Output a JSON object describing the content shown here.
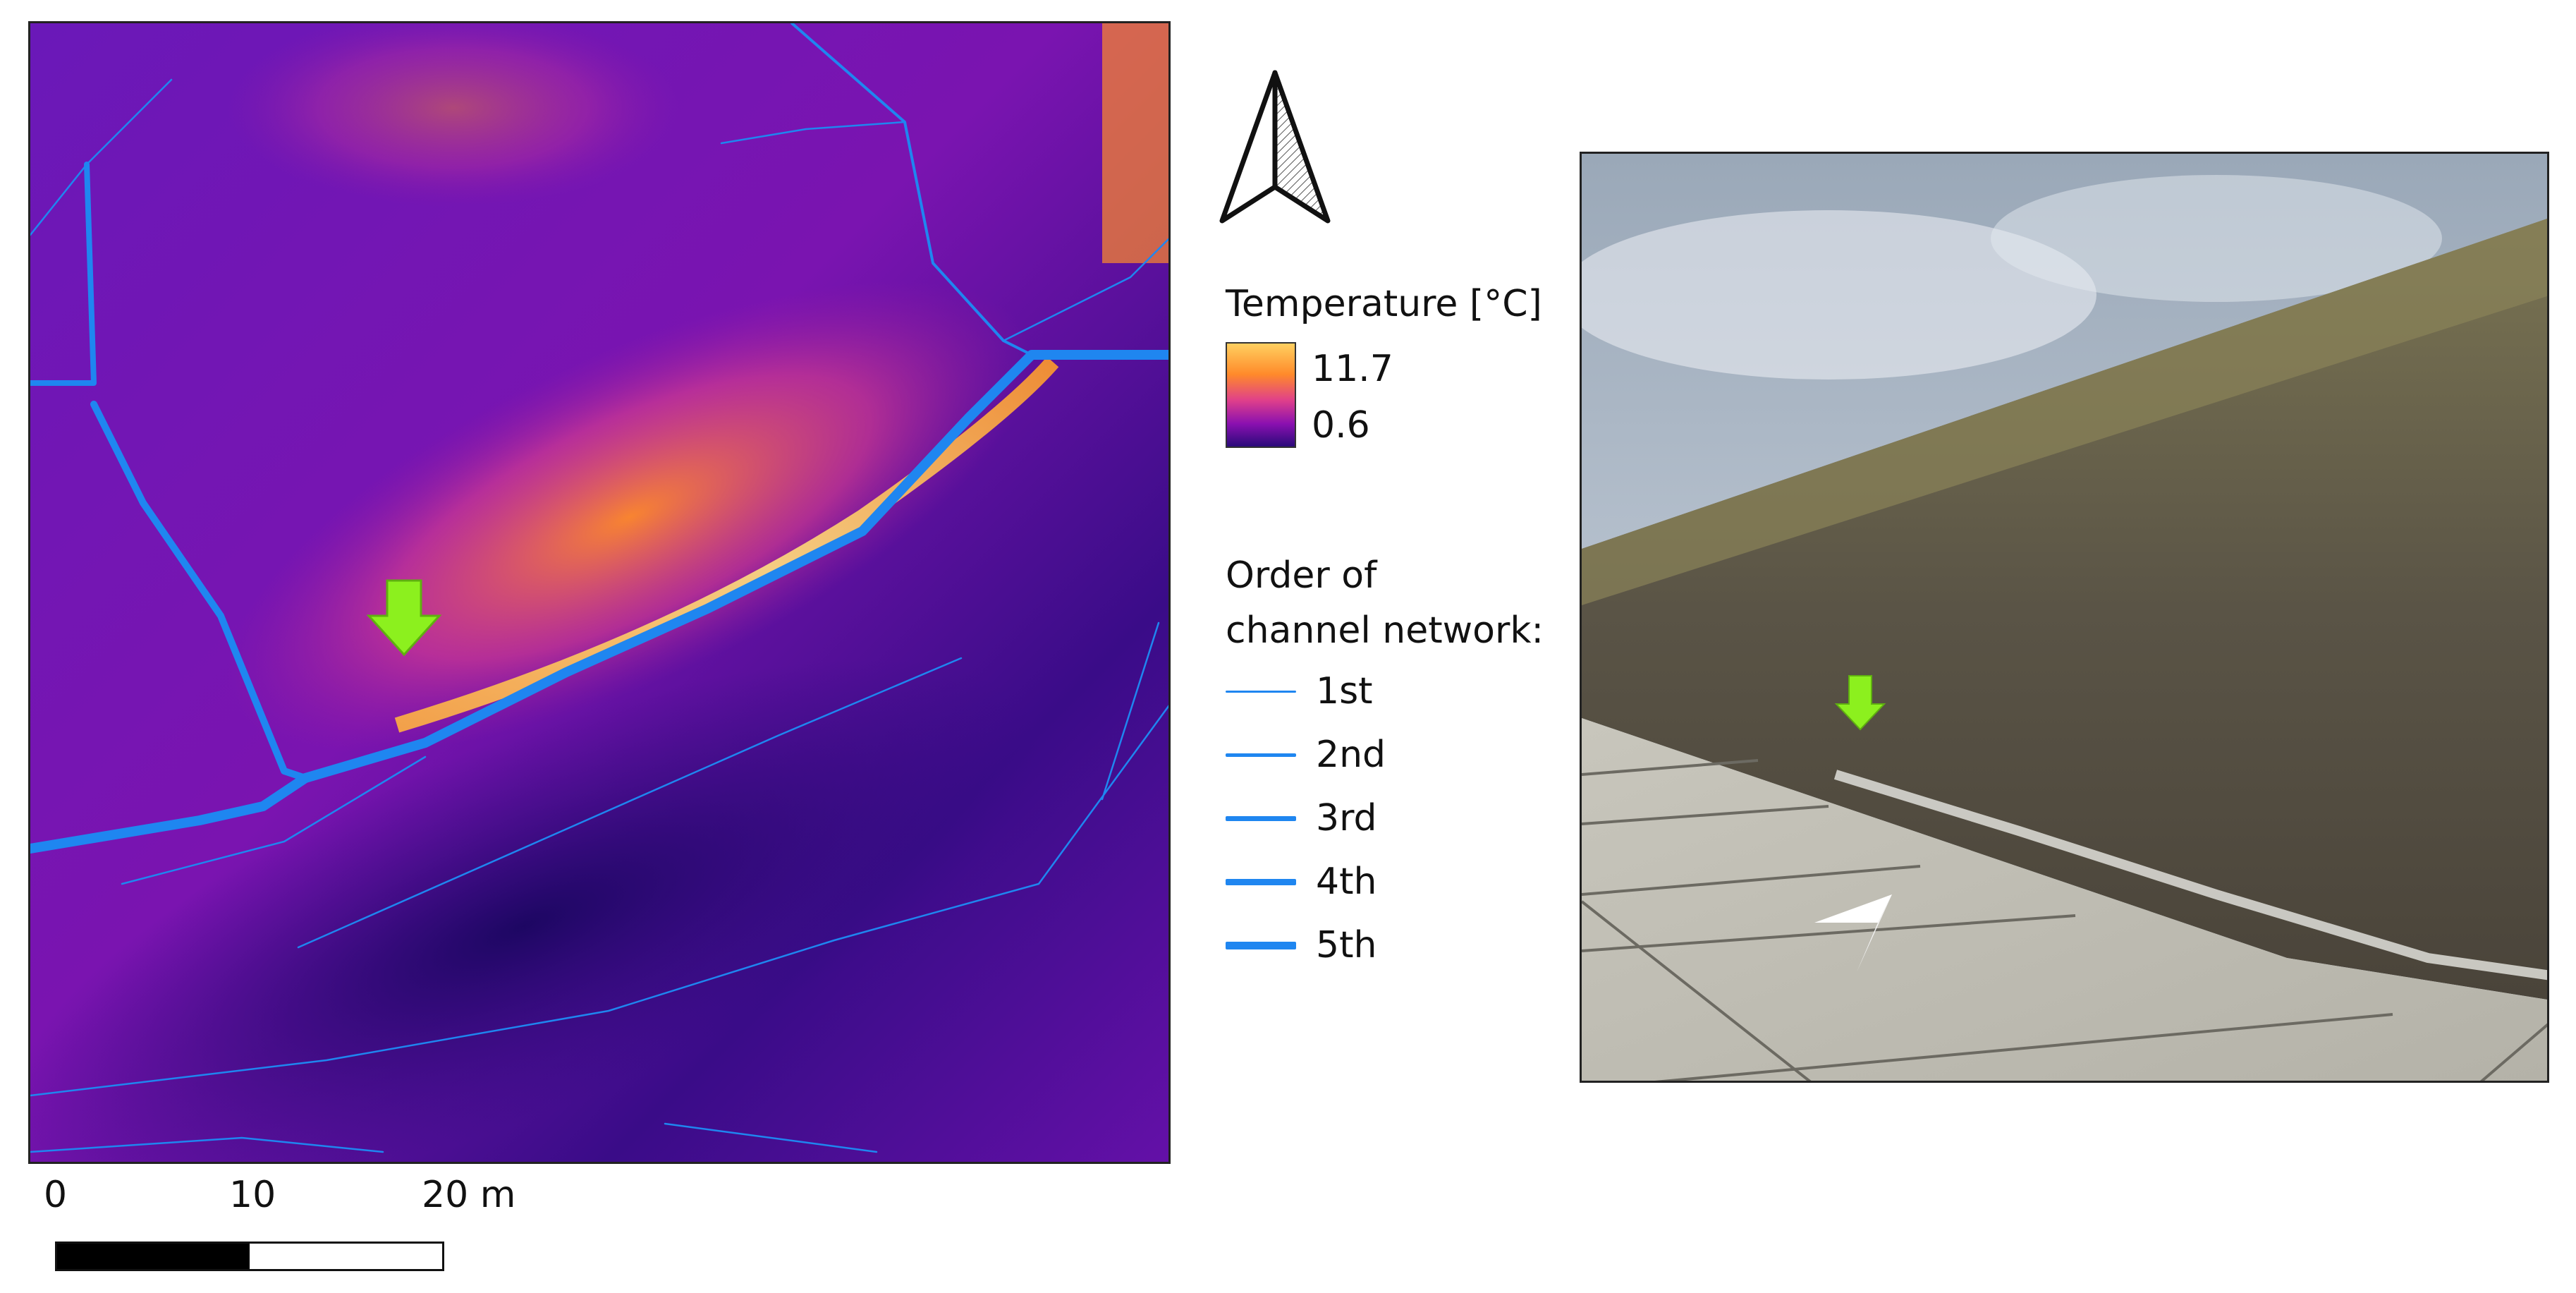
{
  "legend": {
    "temperature_title": "Temperature [°C]",
    "temp_max": "11.7",
    "temp_min": "0.6",
    "channel_title_line1": "Order of",
    "channel_title_line2": "channel network:",
    "orders": [
      "1st",
      "2nd",
      "3rd",
      "4th",
      "5th"
    ]
  },
  "scalebar": {
    "ticks": [
      "0",
      "10",
      "20 m"
    ]
  },
  "colors": {
    "channel": "#1f86f0",
    "marker_arrow": "#8cf01e",
    "temp_gradient": [
      "#2a0a7a",
      "#8a10b0",
      "#e0408a",
      "#ff8a2a",
      "#ffd060"
    ]
  },
  "icons": [
    "north-arrow-icon",
    "location-marker-arrow-icon"
  ]
}
